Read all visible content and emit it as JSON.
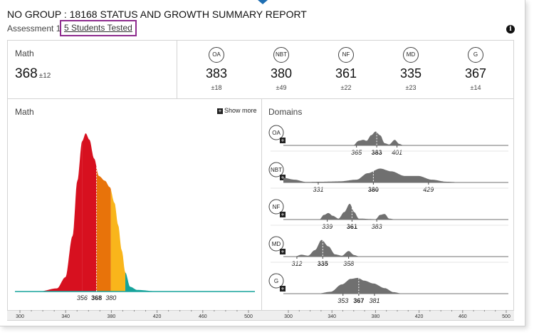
{
  "report": {
    "title": "NO GROUP : 18168 STATUS AND GROWTH SUMMARY REPORT",
    "assessment_label": "Assessment 1",
    "students_link": "5 Students Tested"
  },
  "overall": {
    "label": "Math",
    "score": "368",
    "error": "±12"
  },
  "domains": [
    {
      "code": "OA",
      "score": "383",
      "error": "±18"
    },
    {
      "code": "NBT",
      "score": "380",
      "error": "±49"
    },
    {
      "code": "NF",
      "score": "361",
      "error": "±22"
    },
    {
      "code": "MD",
      "score": "335",
      "error": "±23"
    },
    {
      "code": "G",
      "score": "367",
      "error": "±14"
    }
  ],
  "left_panel": {
    "label": "Math",
    "show_more": "Show more"
  },
  "right_panel": {
    "label": "Domains"
  },
  "chart_data": [
    {
      "type": "area",
      "title": "Math",
      "xlim": [
        300,
        500
      ],
      "x_ticks": [
        300,
        340,
        380,
        420,
        460,
        500
      ],
      "band_markers": [
        {
          "value": 356,
          "label": "356",
          "bold": false
        },
        {
          "value": 368,
          "label": "368",
          "bold": true
        },
        {
          "value": 380,
          "label": "380",
          "bold": false
        }
      ],
      "curve": [
        {
          "x": 300,
          "y": 0.0
        },
        {
          "x": 320,
          "y": 0.0
        },
        {
          "x": 335,
          "y": 0.02
        },
        {
          "x": 342,
          "y": 0.09
        },
        {
          "x": 348,
          "y": 0.35
        },
        {
          "x": 352,
          "y": 0.7
        },
        {
          "x": 356,
          "y": 0.95
        },
        {
          "x": 359,
          "y": 1.0
        },
        {
          "x": 362,
          "y": 0.96
        },
        {
          "x": 366,
          "y": 0.84
        },
        {
          "x": 370,
          "y": 0.73
        },
        {
          "x": 375,
          "y": 0.7
        },
        {
          "x": 379,
          "y": 0.66
        },
        {
          "x": 383,
          "y": 0.56
        },
        {
          "x": 386,
          "y": 0.42
        },
        {
          "x": 389,
          "y": 0.26
        },
        {
          "x": 392,
          "y": 0.12
        },
        {
          "x": 396,
          "y": 0.03
        },
        {
          "x": 402,
          "y": 0.01
        },
        {
          "x": 420,
          "y": 0.0
        },
        {
          "x": 500,
          "y": 0.0
        }
      ],
      "bands": [
        {
          "to": 356,
          "color": "#d7101f"
        },
        {
          "to": 368,
          "color": "#d7101f"
        },
        {
          "to": 380,
          "color": "#e8730a"
        },
        {
          "to": 392,
          "color": "#f9b51b"
        },
        {
          "to": 500,
          "color": "#16a39b"
        }
      ]
    },
    {
      "type": "area",
      "title": "Domains",
      "xlim": [
        300,
        500
      ],
      "x_ticks": [
        300,
        340,
        380,
        420,
        460,
        500
      ],
      "fill_color": "#707070",
      "series": [
        {
          "name": "OA",
          "low": 365,
          "mid": 383,
          "high": 401,
          "curve": [
            {
              "x": 300,
              "y": 0
            },
            {
              "x": 362,
              "y": 0
            },
            {
              "x": 367,
              "y": 0.25
            },
            {
              "x": 371,
              "y": 0.3
            },
            {
              "x": 374,
              "y": 0.25
            },
            {
              "x": 378,
              "y": 0.55
            },
            {
              "x": 382,
              "y": 0.75
            },
            {
              "x": 386,
              "y": 0.55
            },
            {
              "x": 390,
              "y": 0.12
            },
            {
              "x": 394,
              "y": 0.05
            },
            {
              "x": 399,
              "y": 0.3
            },
            {
              "x": 403,
              "y": 0.08
            },
            {
              "x": 407,
              "y": 0
            },
            {
              "x": 500,
              "y": 0
            }
          ]
        },
        {
          "name": "NBT",
          "low": 331,
          "mid": 380,
          "high": 429,
          "curve": [
            {
              "x": 300,
              "y": 0.25
            },
            {
              "x": 310,
              "y": 0.15
            },
            {
              "x": 320,
              "y": 0.03
            },
            {
              "x": 335,
              "y": 0.04
            },
            {
              "x": 350,
              "y": 0.06
            },
            {
              "x": 365,
              "y": 0.15
            },
            {
              "x": 375,
              "y": 0.5
            },
            {
              "x": 386,
              "y": 0.75
            },
            {
              "x": 396,
              "y": 0.6
            },
            {
              "x": 408,
              "y": 0.35
            },
            {
              "x": 420,
              "y": 0.35
            },
            {
              "x": 432,
              "y": 0.15
            },
            {
              "x": 445,
              "y": 0.04
            },
            {
              "x": 460,
              "y": 0
            },
            {
              "x": 500,
              "y": 0
            }
          ]
        },
        {
          "name": "NF",
          "low": 339,
          "mid": 361,
          "high": 383,
          "curve": [
            {
              "x": 300,
              "y": 0
            },
            {
              "x": 332,
              "y": 0
            },
            {
              "x": 336,
              "y": 0.25
            },
            {
              "x": 340,
              "y": 0.35
            },
            {
              "x": 344,
              "y": 0.2
            },
            {
              "x": 349,
              "y": 0.05
            },
            {
              "x": 354,
              "y": 0.4
            },
            {
              "x": 359,
              "y": 0.85
            },
            {
              "x": 363,
              "y": 0.4
            },
            {
              "x": 367,
              "y": 0.05
            },
            {
              "x": 382,
              "y": 0.02
            },
            {
              "x": 386,
              "y": 0.25
            },
            {
              "x": 390,
              "y": 0.3
            },
            {
              "x": 394,
              "y": 0.05
            },
            {
              "x": 400,
              "y": 0
            },
            {
              "x": 500,
              "y": 0
            }
          ]
        },
        {
          "name": "MD",
          "low": 312,
          "mid": 335,
          "high": 358,
          "curve": [
            {
              "x": 300,
              "y": 0
            },
            {
              "x": 310,
              "y": 0
            },
            {
              "x": 316,
              "y": 0.1
            },
            {
              "x": 322,
              "y": 0.05
            },
            {
              "x": 328,
              "y": 0.35
            },
            {
              "x": 334,
              "y": 0.9
            },
            {
              "x": 340,
              "y": 0.55
            },
            {
              "x": 346,
              "y": 0.12
            },
            {
              "x": 352,
              "y": 0.05
            },
            {
              "x": 358,
              "y": 0.3
            },
            {
              "x": 363,
              "y": 0.08
            },
            {
              "x": 368,
              "y": 0
            },
            {
              "x": 500,
              "y": 0
            }
          ]
        },
        {
          "name": "G",
          "low": 353,
          "mid": 367,
          "high": 381,
          "curve": [
            {
              "x": 300,
              "y": 0
            },
            {
              "x": 330,
              "y": 0
            },
            {
              "x": 342,
              "y": 0.1
            },
            {
              "x": 352,
              "y": 0.5
            },
            {
              "x": 360,
              "y": 0.8
            },
            {
              "x": 366,
              "y": 0.85
            },
            {
              "x": 372,
              "y": 0.7
            },
            {
              "x": 380,
              "y": 0.55
            },
            {
              "x": 390,
              "y": 0.3
            },
            {
              "x": 398,
              "y": 0.08
            },
            {
              "x": 406,
              "y": 0
            },
            {
              "x": 500,
              "y": 0
            }
          ]
        }
      ]
    }
  ]
}
